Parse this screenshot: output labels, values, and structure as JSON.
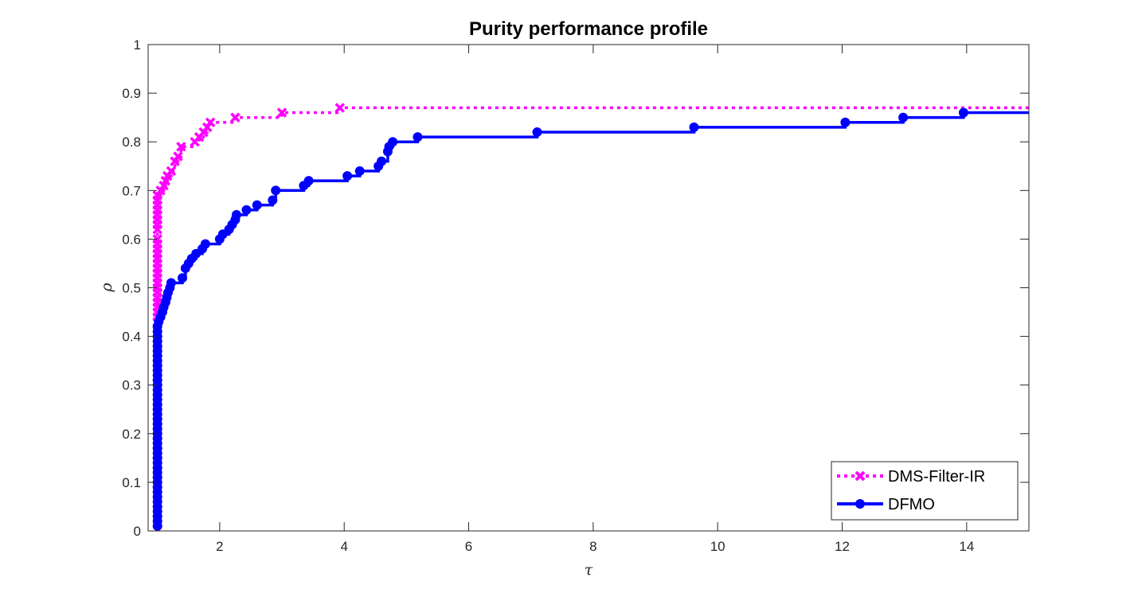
{
  "chart_data": {
    "type": "line",
    "title": "Purity performance profile",
    "xlabel": "τ",
    "ylabel": "ρ",
    "xlim": [
      0.85,
      15
    ],
    "ylim": [
      0,
      1
    ],
    "xticks": [
      "2",
      "4",
      "6",
      "8",
      "10",
      "12",
      "14"
    ],
    "yticks": [
      "0",
      "0.1",
      "0.2",
      "0.3",
      "0.4",
      "0.5",
      "0.6",
      "0.7",
      "0.8",
      "0.9",
      "1"
    ],
    "grid": false,
    "legend_position": "bottom-right",
    "step": true,
    "series": [
      {
        "name": "DMS-Filter-IR",
        "color": "#ff00ff",
        "marker": "x",
        "line_style": "dotted",
        "x": [
          1.0,
          1.0,
          1.0,
          1.0,
          1.0,
          1.0,
          1.0,
          1.0,
          1.0,
          1.0,
          1.0,
          1.0,
          1.0,
          1.0,
          1.0,
          1.0,
          1.0,
          1.0,
          1.0,
          1.0,
          1.0,
          1.0,
          1.0,
          1.0,
          1.0,
          1.0,
          1.05,
          1.1,
          1.13,
          1.16,
          1.22,
          1.28,
          1.33,
          1.38,
          1.6,
          1.67,
          1.74,
          1.8,
          1.85,
          2.25,
          3.0,
          3.93,
          15.0
        ],
        "y": [
          0.43,
          0.44,
          0.45,
          0.46,
          0.47,
          0.48,
          0.49,
          0.5,
          0.51,
          0.52,
          0.53,
          0.54,
          0.55,
          0.56,
          0.57,
          0.58,
          0.59,
          0.6,
          0.62,
          0.63,
          0.64,
          0.65,
          0.66,
          0.67,
          0.68,
          0.69,
          0.7,
          0.71,
          0.72,
          0.73,
          0.74,
          0.76,
          0.77,
          0.79,
          0.8,
          0.81,
          0.82,
          0.83,
          0.84,
          0.85,
          0.86,
          0.87,
          0.87
        ]
      },
      {
        "name": "DFMO",
        "color": "#0000ff",
        "marker": "o",
        "line_style": "solid",
        "x": [
          1.0,
          1.0,
          1.0,
          1.0,
          1.0,
          1.0,
          1.0,
          1.0,
          1.0,
          1.0,
          1.0,
          1.0,
          1.0,
          1.0,
          1.0,
          1.0,
          1.0,
          1.0,
          1.0,
          1.0,
          1.0,
          1.0,
          1.0,
          1.0,
          1.0,
          1.0,
          1.0,
          1.0,
          1.0,
          1.0,
          1.0,
          1.0,
          1.0,
          1.0,
          1.0,
          1.0,
          1.0,
          1.0,
          1.0,
          1.0,
          1.0,
          1.0,
          1.02,
          1.05,
          1.08,
          1.1,
          1.13,
          1.15,
          1.17,
          1.2,
          1.22,
          1.4,
          1.45,
          1.5,
          1.55,
          1.62,
          1.72,
          1.77,
          2.0,
          2.05,
          2.15,
          2.2,
          2.25,
          2.27,
          2.43,
          2.6,
          2.85,
          2.9,
          3.35,
          3.43,
          4.05,
          4.25,
          4.55,
          4.6,
          4.7,
          4.72,
          4.78,
          5.18,
          7.1,
          9.62,
          12.05,
          12.98,
          13.95,
          15.0
        ],
        "y": [
          0.01,
          0.02,
          0.03,
          0.04,
          0.05,
          0.06,
          0.07,
          0.08,
          0.09,
          0.1,
          0.11,
          0.12,
          0.13,
          0.14,
          0.15,
          0.16,
          0.17,
          0.18,
          0.19,
          0.2,
          0.21,
          0.22,
          0.23,
          0.24,
          0.25,
          0.26,
          0.27,
          0.28,
          0.29,
          0.3,
          0.31,
          0.32,
          0.33,
          0.34,
          0.35,
          0.36,
          0.37,
          0.38,
          0.39,
          0.4,
          0.41,
          0.42,
          0.43,
          0.44,
          0.45,
          0.46,
          0.47,
          0.48,
          0.49,
          0.5,
          0.51,
          0.52,
          0.54,
          0.55,
          0.56,
          0.57,
          0.58,
          0.59,
          0.6,
          0.61,
          0.62,
          0.63,
          0.64,
          0.65,
          0.66,
          0.67,
          0.68,
          0.7,
          0.71,
          0.72,
          0.73,
          0.74,
          0.75,
          0.76,
          0.78,
          0.79,
          0.8,
          0.81,
          0.82,
          0.83,
          0.84,
          0.85,
          0.86,
          0.86
        ]
      }
    ]
  }
}
